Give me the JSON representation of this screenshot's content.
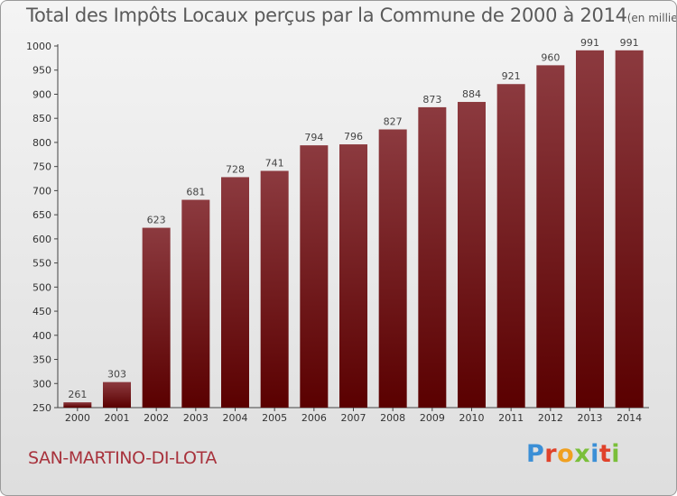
{
  "header": {
    "title": "Total des Impôts Locaux perçus par la Commune de 2000 à 2014",
    "unit": "(en milliers d'€)"
  },
  "footer": {
    "commune": "SAN-MARTINO-DI-LOTA",
    "brand": "Proxiti"
  },
  "colors": {
    "bar_top": "#8c3a3f",
    "bar_bottom": "#5a0000",
    "commune_text": "#a8323c"
  },
  "chart_data": {
    "type": "bar",
    "categories": [
      "2000",
      "2001",
      "2002",
      "2003",
      "2004",
      "2005",
      "2006",
      "2007",
      "2008",
      "2009",
      "2010",
      "2011",
      "2012",
      "2013",
      "2014"
    ],
    "values": [
      261,
      303,
      623,
      681,
      728,
      741,
      794,
      796,
      827,
      873,
      884,
      921,
      960,
      991,
      991
    ],
    "title": "Total des Impôts Locaux perçus par la Commune de 2000 à 2014",
    "xlabel": "",
    "ylabel": "",
    "ylim": [
      250,
      1000
    ],
    "yticks": [
      250,
      300,
      350,
      400,
      450,
      500,
      550,
      600,
      650,
      700,
      750,
      800,
      850,
      900,
      950,
      1000
    ],
    "grid": false,
    "data_labels": true
  }
}
